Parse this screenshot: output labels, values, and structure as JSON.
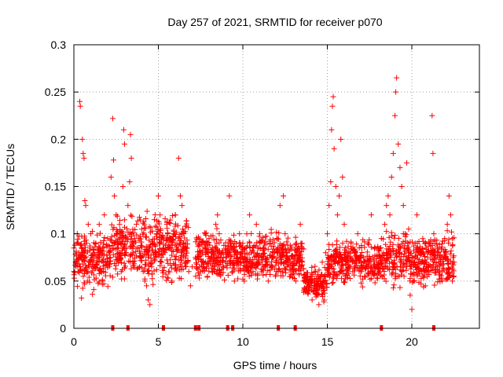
{
  "chart_data": {
    "type": "scatter",
    "title": "Day 257 of 2021, SRMTID for receiver p070",
    "xlabel": "GPS time / hours",
    "ylabel": "SRMTID / TECUs",
    "xlim": [
      0,
      24
    ],
    "ylim": [
      0,
      0.3
    ],
    "xticks": [
      0,
      5,
      10,
      15,
      20
    ],
    "xtick_labels": [
      "0",
      "5",
      "10",
      "15",
      "20"
    ],
    "yticks": [
      0,
      0.05,
      0.1,
      0.15,
      0.2,
      0.25,
      0.3
    ],
    "ytick_labels": [
      "0",
      "0.05",
      "0.1",
      "0.15",
      "0.2",
      "0.25",
      "0.3"
    ],
    "grid": true,
    "marker": "+",
    "color": "#ff0000",
    "series": [
      {
        "name": "SRMTID",
        "points": [
          [
            0.0,
            0.085
          ],
          [
            0.1,
            0.07
          ],
          [
            0.15,
            0.09
          ],
          [
            0.2,
            0.1
          ],
          [
            0.25,
            0.06
          ],
          [
            0.3,
            0.08
          ],
          [
            0.35,
            0.24
          ],
          [
            0.38,
            0.235
          ],
          [
            0.4,
            0.075
          ],
          [
            0.45,
            0.032
          ],
          [
            0.5,
            0.2
          ],
          [
            0.55,
            0.185
          ],
          [
            0.6,
            0.18
          ],
          [
            0.65,
            0.135
          ],
          [
            0.7,
            0.13
          ],
          [
            0.75,
            0.09
          ],
          [
            0.8,
            0.05
          ],
          [
            0.85,
            0.11
          ],
          [
            0.9,
            0.065
          ],
          [
            1.0,
            0.1
          ],
          [
            1.1,
            0.036
          ],
          [
            1.2,
            0.08
          ],
          [
            1.3,
            0.09
          ],
          [
            1.4,
            0.07
          ],
          [
            1.5,
            0.11
          ],
          [
            1.6,
            0.06
          ],
          [
            1.7,
            0.085
          ],
          [
            1.8,
            0.12
          ],
          [
            1.9,
            0.07
          ],
          [
            2.0,
            0.095
          ],
          [
            2.1,
            0.08
          ],
          [
            2.2,
            0.16
          ],
          [
            2.3,
            0.222
          ],
          [
            2.35,
            0.178
          ],
          [
            2.4,
            0.14
          ],
          [
            2.5,
            0.12
          ],
          [
            2.6,
            0.09
          ],
          [
            2.7,
            0.11
          ],
          [
            2.8,
            0.06
          ],
          [
            2.9,
            0.15
          ],
          [
            2.95,
            0.21
          ],
          [
            3.0,
            0.195
          ],
          [
            3.1,
            0.08
          ],
          [
            3.2,
            0.13
          ],
          [
            3.3,
            0.155
          ],
          [
            3.35,
            0.205
          ],
          [
            3.4,
            0.18
          ],
          [
            3.5,
            0.07
          ],
          [
            3.6,
            0.095
          ],
          [
            3.7,
            0.11
          ],
          [
            3.8,
            0.085
          ],
          [
            3.9,
            0.065
          ],
          [
            4.0,
            0.075
          ],
          [
            4.1,
            0.06
          ],
          [
            4.2,
            0.05
          ],
          [
            4.3,
            0.045
          ],
          [
            4.4,
            0.03
          ],
          [
            4.5,
            0.025
          ],
          [
            4.6,
            0.065
          ],
          [
            4.7,
            0.09
          ],
          [
            4.8,
            0.08
          ],
          [
            4.9,
            0.1
          ],
          [
            5.0,
            0.14
          ],
          [
            5.1,
            0.12
          ],
          [
            5.2,
            0.07
          ],
          [
            5.3,
            0.085
          ],
          [
            5.5,
            0.11
          ],
          [
            5.6,
            0.06
          ],
          [
            5.7,
            0.095
          ],
          [
            5.8,
            0.05
          ],
          [
            5.9,
            0.1
          ],
          [
            6.0,
            0.12
          ],
          [
            6.1,
            0.09
          ],
          [
            6.2,
            0.18
          ],
          [
            6.3,
            0.14
          ],
          [
            6.4,
            0.13
          ],
          [
            6.5,
            0.1
          ],
          [
            6.6,
            0.07
          ],
          [
            6.7,
            0.085
          ],
          [
            6.8,
            0.06
          ],
          [
            6.9,
            0.045
          ],
          [
            7.0,
            0.065
          ],
          [
            7.2,
            0.075
          ],
          [
            7.4,
            0.09
          ],
          [
            7.5,
            0.06
          ],
          [
            7.6,
            0.08
          ],
          [
            7.8,
            0.07
          ],
          [
            7.9,
            0.055
          ],
          [
            8.0,
            0.095
          ],
          [
            8.2,
            0.085
          ],
          [
            8.4,
            0.11
          ],
          [
            8.5,
            0.12
          ],
          [
            8.6,
            0.1
          ],
          [
            8.8,
            0.065
          ],
          [
            9.0,
            0.075
          ],
          [
            9.2,
            0.14
          ],
          [
            9.3,
            0.09
          ],
          [
            9.4,
            0.06
          ],
          [
            9.5,
            0.05
          ],
          [
            9.6,
            0.08
          ],
          [
            9.8,
            0.1
          ],
          [
            10.0,
            0.09
          ],
          [
            10.2,
            0.07
          ],
          [
            10.4,
            0.12
          ],
          [
            10.5,
            0.08
          ],
          [
            10.6,
            0.06
          ],
          [
            10.8,
            0.11
          ],
          [
            11.0,
            0.1
          ],
          [
            11.2,
            0.085
          ],
          [
            11.4,
            0.07
          ],
          [
            11.5,
            0.05
          ],
          [
            11.6,
            0.09
          ],
          [
            11.8,
            0.075
          ],
          [
            12.0,
            0.06
          ],
          [
            12.2,
            0.13
          ],
          [
            12.4,
            0.14
          ],
          [
            12.5,
            0.1
          ],
          [
            12.6,
            0.07
          ],
          [
            12.8,
            0.055
          ],
          [
            13.0,
            0.06
          ],
          [
            13.2,
            0.08
          ],
          [
            13.4,
            0.11
          ],
          [
            13.5,
            0.09
          ],
          [
            13.6,
            0.05
          ],
          [
            13.8,
            0.04
          ],
          [
            14.0,
            0.055
          ],
          [
            14.1,
            0.03
          ],
          [
            14.2,
            0.045
          ],
          [
            14.3,
            0.06
          ],
          [
            14.4,
            0.035
          ],
          [
            14.5,
            0.025
          ],
          [
            14.6,
            0.05
          ],
          [
            14.7,
            0.07
          ],
          [
            14.8,
            0.04
          ],
          [
            14.9,
            0.08
          ],
          [
            15.0,
            0.1
          ],
          [
            15.1,
            0.13
          ],
          [
            15.2,
            0.155
          ],
          [
            15.25,
            0.21
          ],
          [
            15.3,
            0.235
          ],
          [
            15.35,
            0.245
          ],
          [
            15.4,
            0.19
          ],
          [
            15.5,
            0.15
          ],
          [
            15.6,
            0.12
          ],
          [
            15.7,
            0.14
          ],
          [
            15.8,
            0.2
          ],
          [
            15.9,
            0.16
          ],
          [
            16.0,
            0.11
          ],
          [
            16.2,
            0.07
          ],
          [
            16.4,
            0.09
          ],
          [
            16.5,
            0.06
          ],
          [
            16.6,
            0.08
          ],
          [
            16.8,
            0.1
          ],
          [
            17.0,
            0.075
          ],
          [
            17.2,
            0.055
          ],
          [
            17.4,
            0.09
          ],
          [
            17.6,
            0.12
          ],
          [
            17.8,
            0.085
          ],
          [
            18.0,
            0.065
          ],
          [
            18.2,
            0.095
          ],
          [
            18.4,
            0.11
          ],
          [
            18.5,
            0.13
          ],
          [
            18.6,
            0.14
          ],
          [
            18.7,
            0.12
          ],
          [
            18.8,
            0.16
          ],
          [
            18.9,
            0.185
          ],
          [
            19.0,
            0.225
          ],
          [
            19.05,
            0.25
          ],
          [
            19.1,
            0.265
          ],
          [
            19.2,
            0.195
          ],
          [
            19.3,
            0.17
          ],
          [
            19.4,
            0.15
          ],
          [
            19.5,
            0.13
          ],
          [
            19.6,
            0.1
          ],
          [
            19.7,
            0.175
          ],
          [
            19.8,
            0.08
          ],
          [
            19.9,
            0.035
          ],
          [
            20.0,
            0.02
          ],
          [
            20.1,
            0.05
          ],
          [
            20.2,
            0.09
          ],
          [
            20.3,
            0.12
          ],
          [
            20.4,
            0.07
          ],
          [
            20.6,
            0.06
          ],
          [
            20.8,
            0.045
          ],
          [
            21.0,
            0.065
          ],
          [
            21.1,
            0.09
          ],
          [
            21.2,
            0.225
          ],
          [
            21.25,
            0.185
          ],
          [
            21.3,
            0.1
          ],
          [
            21.4,
            0.075
          ],
          [
            21.6,
            0.06
          ],
          [
            21.8,
            0.05
          ],
          [
            22.0,
            0.08
          ],
          [
            22.1,
            0.11
          ],
          [
            22.2,
            0.14
          ],
          [
            22.3,
            0.12
          ],
          [
            22.4,
            0.095
          ],
          [
            22.5,
            0.07
          ]
        ]
      }
    ],
    "gap_markers_x": [
      2.3,
      3.2,
      5.3,
      7.2,
      7.4,
      9.1,
      9.4,
      12.1,
      13.1,
      18.2,
      21.3
    ],
    "density_bands": [
      {
        "x0": 0,
        "x1": 2.2,
        "ymin": 0.035,
        "ymax": 0.11
      },
      {
        "x0": 2.2,
        "x1": 6.8,
        "ymin": 0.04,
        "ymax": 0.13
      },
      {
        "x0": 7.2,
        "x1": 9.6,
        "ymin": 0.04,
        "ymax": 0.11
      },
      {
        "x0": 9.6,
        "x1": 13.6,
        "ymin": 0.04,
        "ymax": 0.11
      },
      {
        "x0": 13.6,
        "x1": 15.0,
        "ymin": 0.025,
        "ymax": 0.07
      },
      {
        "x0": 15.0,
        "x1": 18.4,
        "ymin": 0.04,
        "ymax": 0.1
      },
      {
        "x0": 18.4,
        "x1": 22.5,
        "ymin": 0.035,
        "ymax": 0.11
      }
    ]
  }
}
